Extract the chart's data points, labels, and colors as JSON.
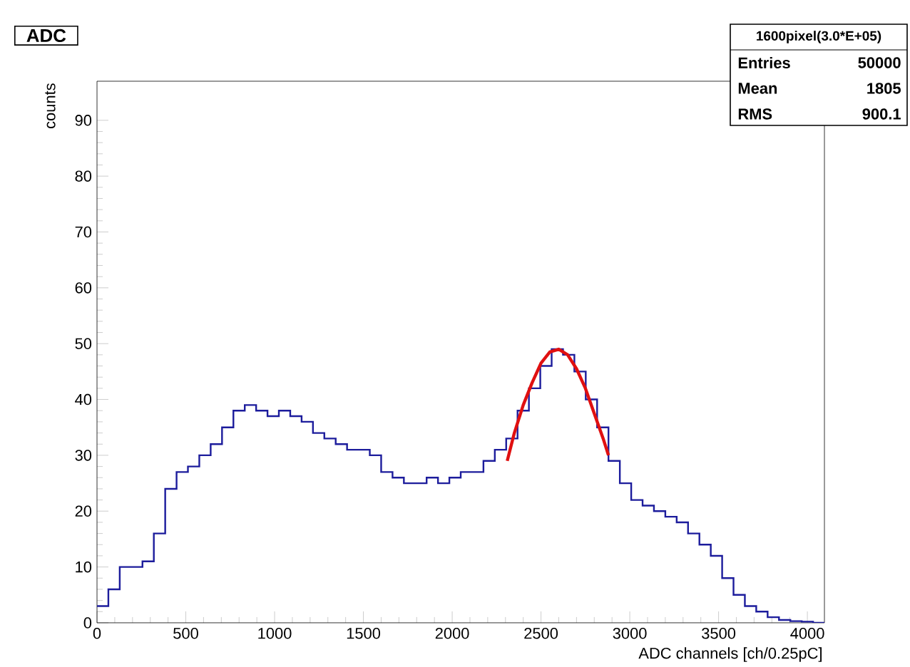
{
  "chart_data": {
    "type": "histogram",
    "title": "ADC",
    "xlabel": "ADC channels [ch/0.25pC]",
    "ylabel": "counts",
    "xlim": [
      0,
      4096
    ],
    "ylim": [
      0,
      97
    ],
    "xticks": [
      0,
      500,
      1000,
      1500,
      2000,
      2500,
      3000,
      3500,
      4000
    ],
    "yticks": [
      0,
      10,
      20,
      30,
      40,
      50,
      60,
      70,
      80,
      90
    ],
    "series": [
      {
        "color": "#1c1c9c",
        "bins": [
          0,
          64,
          128,
          192,
          256,
          320,
          384,
          448,
          512,
          576,
          640,
          704,
          768,
          832,
          896,
          960,
          1024,
          1088,
          1152,
          1216,
          1280,
          1344,
          1408,
          1472,
          1536,
          1600,
          1664,
          1728,
          1792,
          1856,
          1920,
          1984,
          2048,
          2112,
          2176,
          2240,
          2304,
          2368,
          2432,
          2496,
          2560,
          2624,
          2688,
          2752,
          2816,
          2880,
          2944,
          3008,
          3072,
          3136,
          3200,
          3264,
          3328,
          3392,
          3456,
          3520,
          3584,
          3648,
          3712,
          3776,
          3840,
          3904,
          3968,
          4032,
          4096
        ],
        "values": [
          3,
          6,
          10,
          10,
          11,
          16,
          24,
          27,
          28,
          30,
          32,
          35,
          38,
          39,
          38,
          37,
          38,
          37,
          36,
          34,
          33,
          32,
          31,
          31,
          30,
          27,
          26,
          25,
          25,
          26,
          25,
          26,
          27,
          27,
          29,
          31,
          33,
          38,
          42,
          46,
          49,
          48,
          45,
          40,
          35,
          29,
          25,
          22,
          21,
          20,
          19,
          18,
          16,
          14,
          12,
          8,
          5,
          3,
          2,
          1,
          0.5,
          0.3,
          0.2,
          0
        ]
      },
      {
        "type": "line",
        "color": "#e01010",
        "x": [
          2310,
          2350,
          2400,
          2450,
          2500,
          2550,
          2600,
          2650,
          2700,
          2750,
          2800,
          2850,
          2880
        ],
        "values": [
          29,
          34,
          39,
          43,
          46.5,
          48.5,
          49,
          48,
          45.5,
          42,
          37.5,
          33,
          30
        ]
      }
    ],
    "annotations": [
      "1600pixel(3.0*E+05)",
      "Entries",
      "50000",
      "Mean",
      "1805",
      "RMS",
      "900.1"
    ]
  }
}
